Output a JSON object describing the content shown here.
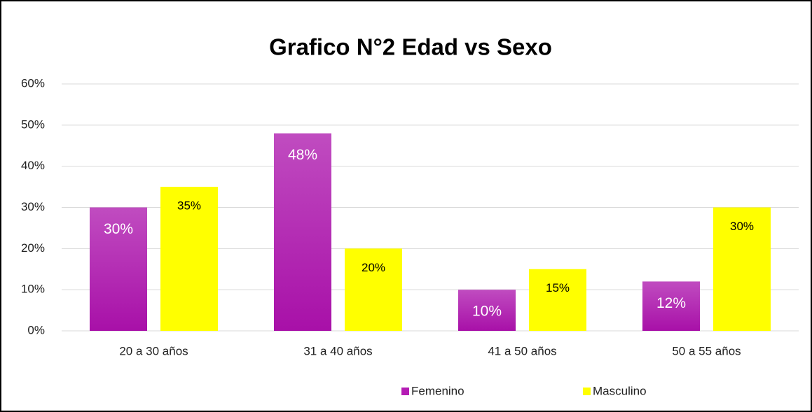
{
  "chart_data": {
    "type": "bar",
    "title": "Grafico N°2 Edad vs Sexo",
    "categories": [
      "20 a 30 años",
      "31 a 40 años",
      "41 a 50 años",
      "50 a 55 años"
    ],
    "series": [
      {
        "name": "Femenino",
        "color": "#b41cb4",
        "values": [
          30,
          48,
          10,
          12
        ],
        "value_labels": [
          "30%",
          "48%",
          "10%",
          "12%"
        ]
      },
      {
        "name": "Masculino",
        "color": "#ffff00",
        "values": [
          35,
          20,
          15,
          30
        ],
        "value_labels": [
          "35%",
          "20%",
          "15%",
          "30%"
        ]
      }
    ],
    "ylim": [
      0,
      60
    ],
    "yticks": [
      {
        "value": 0,
        "label": "0%"
      },
      {
        "value": 10,
        "label": "10%"
      },
      {
        "value": 20,
        "label": "20%"
      },
      {
        "value": 30,
        "label": "30%"
      },
      {
        "value": 40,
        "label": "40%"
      },
      {
        "value": 50,
        "label": "50%"
      },
      {
        "value": 60,
        "label": "60%"
      }
    ],
    "grid": true,
    "legend": "bottom"
  }
}
